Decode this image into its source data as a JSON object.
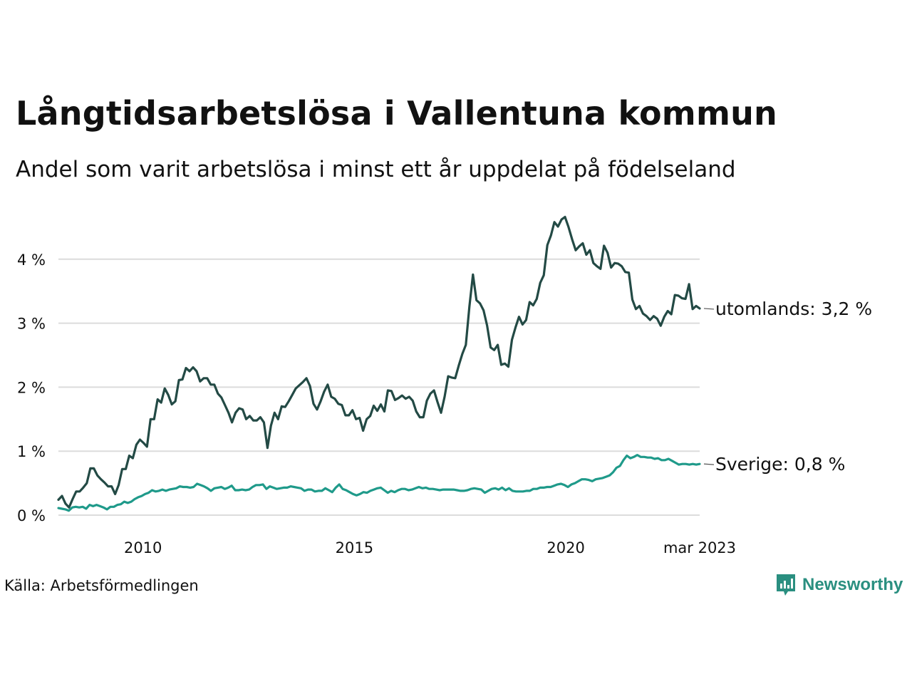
{
  "header": {
    "title": "Långtidsarbetslösa i Vallentuna kommun",
    "subtitle": "Andel som varit arbetslösa i minst ett år uppdelat på födelseland"
  },
  "footer": {
    "source": "Källa: Arbetsförmedlingen",
    "brand": "Newsworthy"
  },
  "colors": {
    "utomlands": "#234a45",
    "sverige": "#1f9a8a",
    "grid": "#dcdcdc",
    "brand": "#2a8f80"
  },
  "chart_data": {
    "type": "line",
    "ylim": [
      0,
      4.7
    ],
    "grid": true,
    "y_ticks": [
      {
        "value": 0,
        "label": "0 %"
      },
      {
        "value": 1,
        "label": "1 %"
      },
      {
        "value": 2,
        "label": "2 %"
      },
      {
        "value": 3,
        "label": "3 %"
      },
      {
        "value": 4,
        "label": "4 %"
      }
    ],
    "x_ticks": [
      {
        "value": "2010-01",
        "label": "2010"
      },
      {
        "value": "2015-01",
        "label": "2015"
      },
      {
        "value": "2020-01",
        "label": "2020"
      },
      {
        "value": "2023-03",
        "label": "mar 2023"
      }
    ],
    "x_start": "2008-01",
    "x_end": "2023-03",
    "series": [
      {
        "name": "utomlands",
        "end_label": "utomlands: 3,2 %",
        "color": "#234a45",
        "values": [
          0.24,
          0.3,
          0.18,
          0.12,
          0.25,
          0.37,
          0.37,
          0.43,
          0.5,
          0.73,
          0.73,
          0.62,
          0.56,
          0.51,
          0.45,
          0.45,
          0.33,
          0.47,
          0.72,
          0.72,
          0.93,
          0.89,
          1.1,
          1.18,
          1.13,
          1.07,
          1.5,
          1.5,
          1.81,
          1.76,
          1.98,
          1.88,
          1.73,
          1.78,
          2.11,
          2.12,
          2.3,
          2.25,
          2.31,
          2.25,
          2.09,
          2.14,
          2.14,
          2.04,
          2.04,
          1.9,
          1.84,
          1.72,
          1.6,
          1.45,
          1.6,
          1.67,
          1.65,
          1.5,
          1.55,
          1.48,
          1.48,
          1.53,
          1.45,
          1.05,
          1.4,
          1.6,
          1.5,
          1.7,
          1.69,
          1.78,
          1.88,
          1.98,
          2.03,
          2.08,
          2.14,
          2.02,
          1.74,
          1.65,
          1.78,
          1.93,
          2.04,
          1.85,
          1.82,
          1.74,
          1.72,
          1.56,
          1.56,
          1.64,
          1.5,
          1.52,
          1.32,
          1.5,
          1.55,
          1.71,
          1.63,
          1.73,
          1.62,
          1.95,
          1.94,
          1.8,
          1.83,
          1.87,
          1.82,
          1.85,
          1.79,
          1.62,
          1.53,
          1.53,
          1.79,
          1.9,
          1.95,
          1.77,
          1.6,
          1.85,
          2.17,
          2.15,
          2.14,
          2.34,
          2.52,
          2.66,
          3.26,
          3.76,
          3.36,
          3.31,
          3.2,
          2.96,
          2.62,
          2.58,
          2.66,
          2.35,
          2.37,
          2.32,
          2.74,
          2.93,
          3.1,
          2.98,
          3.05,
          3.33,
          3.28,
          3.38,
          3.63,
          3.75,
          4.22,
          4.37,
          4.58,
          4.51,
          4.62,
          4.66,
          4.5,
          4.31,
          4.14,
          4.2,
          4.25,
          4.07,
          4.14,
          3.94,
          3.89,
          3.85,
          4.21,
          4.1,
          3.87,
          3.94,
          3.93,
          3.89,
          3.8,
          3.79,
          3.37,
          3.22,
          3.27,
          3.15,
          3.11,
          3.05,
          3.11,
          3.07,
          2.96,
          3.1,
          3.19,
          3.14,
          3.44,
          3.43,
          3.39,
          3.38,
          3.61,
          3.22,
          3.27,
          3.23
        ]
      },
      {
        "name": "Sverige",
        "end_label": "Sverige: 0,8 %",
        "color": "#1f9a8a",
        "values": [
          0.11,
          0.1,
          0.09,
          0.07,
          0.12,
          0.13,
          0.12,
          0.13,
          0.1,
          0.16,
          0.14,
          0.16,
          0.14,
          0.12,
          0.09,
          0.13,
          0.13,
          0.16,
          0.17,
          0.21,
          0.19,
          0.21,
          0.25,
          0.28,
          0.3,
          0.33,
          0.35,
          0.39,
          0.37,
          0.38,
          0.4,
          0.38,
          0.4,
          0.41,
          0.42,
          0.45,
          0.44,
          0.44,
          0.43,
          0.44,
          0.49,
          0.47,
          0.45,
          0.42,
          0.38,
          0.42,
          0.43,
          0.44,
          0.41,
          0.43,
          0.46,
          0.39,
          0.39,
          0.4,
          0.39,
          0.4,
          0.44,
          0.47,
          0.47,
          0.48,
          0.41,
          0.45,
          0.43,
          0.41,
          0.42,
          0.43,
          0.43,
          0.45,
          0.44,
          0.43,
          0.42,
          0.38,
          0.4,
          0.4,
          0.37,
          0.38,
          0.38,
          0.42,
          0.39,
          0.36,
          0.43,
          0.48,
          0.41,
          0.39,
          0.36,
          0.33,
          0.31,
          0.33,
          0.36,
          0.35,
          0.38,
          0.4,
          0.42,
          0.43,
          0.39,
          0.35,
          0.38,
          0.36,
          0.39,
          0.41,
          0.41,
          0.39,
          0.4,
          0.42,
          0.44,
          0.42,
          0.43,
          0.41,
          0.41,
          0.4,
          0.39,
          0.4,
          0.4,
          0.4,
          0.4,
          0.39,
          0.38,
          0.38,
          0.39,
          0.41,
          0.42,
          0.41,
          0.4,
          0.35,
          0.38,
          0.41,
          0.42,
          0.4,
          0.43,
          0.39,
          0.42,
          0.38,
          0.37,
          0.37,
          0.37,
          0.38,
          0.38,
          0.41,
          0.41,
          0.43,
          0.43,
          0.44,
          0.44,
          0.46,
          0.48,
          0.49,
          0.47,
          0.44,
          0.48,
          0.5,
          0.53,
          0.56,
          0.56,
          0.55,
          0.53,
          0.56,
          0.57,
          0.58,
          0.6,
          0.62,
          0.67,
          0.74,
          0.77,
          0.86,
          0.93,
          0.89,
          0.91,
          0.94,
          0.91,
          0.91,
          0.9,
          0.9,
          0.88,
          0.89,
          0.86,
          0.86,
          0.88,
          0.85,
          0.82,
          0.79,
          0.8,
          0.8,
          0.79,
          0.8,
          0.79,
          0.8
        ]
      }
    ]
  }
}
